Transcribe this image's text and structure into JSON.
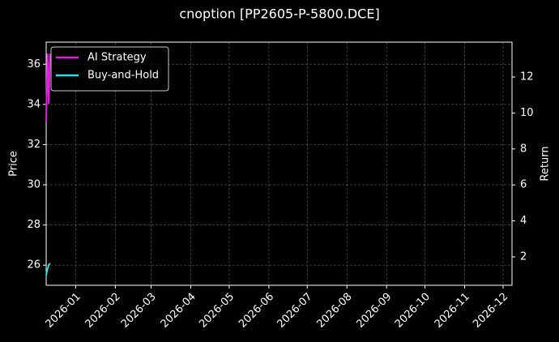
{
  "chart_data": {
    "type": "line",
    "title": "cnoption [PP2605-P-5800.DCE]",
    "ylabel": "Price",
    "y2label": "Return",
    "x": [
      "2025-12-09",
      "2025-12-10",
      "2025-12-11",
      "2025-12-12"
    ],
    "series": [
      {
        "name": "AI Strategy",
        "color": "#e020e0",
        "axis": "y2",
        "values": [
          9.5,
          13.3,
          10.5,
          13.3
        ]
      },
      {
        "name": "Buy-and-Hold",
        "color": "#20e0e8",
        "values": [
          25.5,
          25.8,
          26.0,
          26.1
        ]
      }
    ],
    "xlim": [
      "2025-12-09",
      "2026-12-08"
    ],
    "xticks": [
      {
        "value": "2026-01-01",
        "label": "2026-01"
      },
      {
        "value": "2026-02-01",
        "label": "2026-02"
      },
      {
        "value": "2026-03-01",
        "label": "2026-03"
      },
      {
        "value": "2026-04-01",
        "label": "2026-04"
      },
      {
        "value": "2026-05-01",
        "label": "2026-05"
      },
      {
        "value": "2026-06-01",
        "label": "2026-06"
      },
      {
        "value": "2026-07-01",
        "label": "2026-07"
      },
      {
        "value": "2026-08-01",
        "label": "2026-08"
      },
      {
        "value": "2026-09-01",
        "label": "2026-09"
      },
      {
        "value": "2026-10-01",
        "label": "2026-10"
      },
      {
        "value": "2026-11-01",
        "label": "2026-11"
      },
      {
        "value": "2026-12-01",
        "label": "2026-12"
      }
    ],
    "ylim": [
      25,
      37.1
    ],
    "yticks": [
      26,
      28,
      30,
      32,
      34,
      36
    ],
    "y2lim": [
      0.42,
      13.94
    ],
    "y2ticks": [
      2,
      4,
      6,
      8,
      10,
      12
    ],
    "grid": true,
    "legend": "upper-left"
  }
}
